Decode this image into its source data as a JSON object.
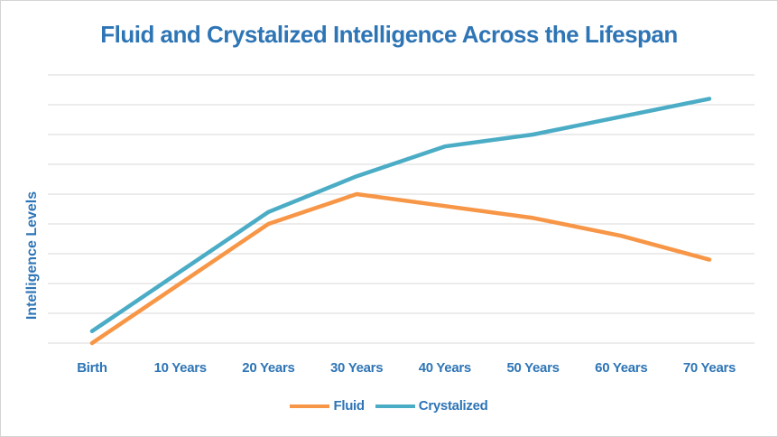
{
  "chart_data": {
    "type": "line",
    "title": "Fluid and Crystalized Intelligence Across the Lifespan",
    "xlabel": "",
    "ylabel": "Intelligence Levels",
    "categories": [
      "Birth",
      "10 Years",
      "20 Years",
      "30 Years",
      "40 Years",
      "50 Years",
      "60 Years",
      "70 Years"
    ],
    "series": [
      {
        "name": "Fluid",
        "color": "#f79646",
        "values": [
          0,
          2,
          4,
          5,
          4.6,
          4.2,
          3.6,
          2.8
        ]
      },
      {
        "name": "Crystalized",
        "color": "#4bacc6",
        "values": [
          0.4,
          2.4,
          4.4,
          5.6,
          6.6,
          7.0,
          7.6,
          8.2
        ]
      }
    ],
    "ylim": [
      0,
      9
    ],
    "grid": true,
    "legend_position": "bottom",
    "tick_label_color": "#2e75b6",
    "title_color": "#2e75b6",
    "gridline_color": "#d9d9d9"
  }
}
